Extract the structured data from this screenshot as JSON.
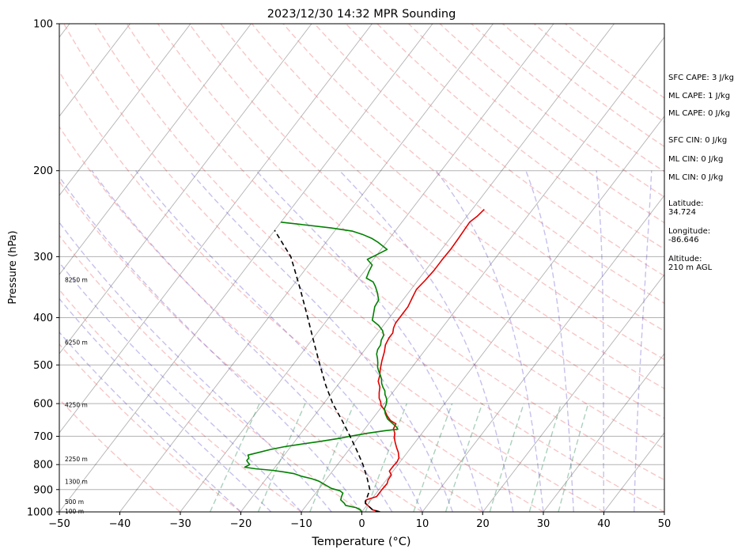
{
  "chart_data": {
    "type": "line",
    "title": "2023/12/30 14:32 MPR Sounding",
    "xlabel": "Temperature (°C)",
    "ylabel": "Pressure (hPa)",
    "xlim": [
      -50,
      50
    ],
    "ylim": [
      1000,
      100
    ],
    "yscale": "log",
    "x_ticks": [
      "−50",
      "−40",
      "−30",
      "−20",
      "−10",
      "0",
      "10",
      "20",
      "30",
      "40",
      "50"
    ],
    "y_ticks": [
      1000,
      900,
      800,
      700,
      600,
      500,
      400,
      300,
      200,
      100
    ],
    "grid": true,
    "series": [
      {
        "role": "temperature",
        "color": "#e00000",
        "points": [
          [
            3.0,
            1000
          ],
          [
            1.5,
            990
          ],
          [
            0.5,
            975
          ],
          [
            -0.5,
            960
          ],
          [
            -0.8,
            945
          ],
          [
            0.5,
            930
          ],
          [
            0.5,
            900
          ],
          [
            0.6,
            875
          ],
          [
            0.3,
            860
          ],
          [
            0.2,
            840
          ],
          [
            -0.6,
            825
          ],
          [
            -0.6,
            805
          ],
          [
            -0.5,
            790
          ],
          [
            -0.7,
            775
          ],
          [
            -1.5,
            755
          ],
          [
            -2.3,
            740
          ],
          [
            -3.3,
            720
          ],
          [
            -4.0,
            705
          ],
          [
            -4.5,
            690
          ],
          [
            -5.3,
            675
          ],
          [
            -5.5,
            660
          ],
          [
            -6.8,
            650
          ],
          [
            -8.0,
            635
          ],
          [
            -9.0,
            620
          ],
          [
            -10.3,
            605
          ],
          [
            -10.8,
            595
          ],
          [
            -11.5,
            585
          ],
          [
            -12.2,
            570
          ],
          [
            -12.8,
            555
          ],
          [
            -13.8,
            540
          ],
          [
            -14.3,
            525
          ],
          [
            -15.0,
            510
          ],
          [
            -15.8,
            490
          ],
          [
            -16.5,
            470
          ],
          [
            -17.2,
            455
          ],
          [
            -17.5,
            440
          ],
          [
            -17.5,
            430
          ],
          [
            -18.0,
            420
          ],
          [
            -18.3,
            410
          ],
          [
            -18.3,
            395
          ],
          [
            -18.3,
            380
          ],
          [
            -18.7,
            365
          ],
          [
            -19.1,
            350
          ],
          [
            -18.8,
            335
          ],
          [
            -18.6,
            320
          ],
          [
            -18.6,
            305
          ],
          [
            -18.5,
            290
          ],
          [
            -18.6,
            275
          ],
          [
            -18.7,
            265
          ],
          [
            -18.8,
            255
          ],
          [
            -18.3,
            248
          ],
          [
            -18.0,
            240
          ]
        ]
      },
      {
        "role": "dewpoint",
        "color": "#008000",
        "points": [
          [
            0.0,
            1000
          ],
          [
            -0.5,
            990
          ],
          [
            -1.5,
            980
          ],
          [
            -3.5,
            970
          ],
          [
            -4.0,
            960
          ],
          [
            -5.0,
            945
          ],
          [
            -5.3,
            930
          ],
          [
            -5.5,
            915
          ],
          [
            -6.3,
            905
          ],
          [
            -8.0,
            895
          ],
          [
            -9.5,
            880
          ],
          [
            -11.0,
            865
          ],
          [
            -12.5,
            855
          ],
          [
            -14.5,
            845
          ],
          [
            -16.0,
            835
          ],
          [
            -18.0,
            828
          ],
          [
            -20.0,
            822
          ],
          [
            -23.0,
            816
          ],
          [
            -25.0,
            810
          ],
          [
            -24.5,
            800
          ],
          [
            -25.0,
            793
          ],
          [
            -25.5,
            785
          ],
          [
            -25.5,
            775
          ],
          [
            -26.0,
            765
          ],
          [
            -24.5,
            755
          ],
          [
            -23.0,
            745
          ],
          [
            -21.0,
            735
          ],
          [
            -19.0,
            728
          ],
          [
            -16.0,
            718
          ],
          [
            -13.0,
            707
          ],
          [
            -11.5,
            700
          ],
          [
            -9.0,
            690
          ],
          [
            -6.5,
            682
          ],
          [
            -4.5,
            677
          ],
          [
            -5.0,
            670
          ],
          [
            -6.0,
            660
          ],
          [
            -7.5,
            645
          ],
          [
            -8.5,
            630
          ],
          [
            -9.3,
            615
          ],
          [
            -9.5,
            605
          ],
          [
            -9.8,
            595
          ],
          [
            -10.3,
            585
          ],
          [
            -11.0,
            575
          ],
          [
            -11.5,
            565
          ],
          [
            -12.3,
            555
          ],
          [
            -13.0,
            545
          ],
          [
            -13.5,
            535
          ],
          [
            -14.2,
            525
          ],
          [
            -15.0,
            515
          ],
          [
            -15.7,
            505
          ],
          [
            -16.2,
            495
          ],
          [
            -16.8,
            485
          ],
          [
            -17.5,
            475
          ],
          [
            -17.9,
            465
          ],
          [
            -18.0,
            455
          ],
          [
            -18.5,
            445
          ],
          [
            -18.7,
            435
          ],
          [
            -19.5,
            425
          ],
          [
            -20.8,
            415
          ],
          [
            -22.5,
            405
          ],
          [
            -23.0,
            395
          ],
          [
            -23.8,
            380
          ],
          [
            -24.0,
            368
          ],
          [
            -25.2,
            355
          ],
          [
            -26.3,
            345
          ],
          [
            -27.2,
            338
          ],
          [
            -28.8,
            332
          ],
          [
            -29.2,
            322
          ],
          [
            -29.5,
            312
          ],
          [
            -31.0,
            304
          ],
          [
            -30.0,
            297
          ],
          [
            -29.0,
            290
          ],
          [
            -31.5,
            280
          ],
          [
            -33.0,
            275
          ],
          [
            -35.0,
            270
          ],
          [
            -37.0,
            266
          ],
          [
            -41.0,
            262
          ],
          [
            -46.0,
            258
          ],
          [
            -50.0,
            255
          ]
        ]
      },
      {
        "role": "parcel",
        "color": "#000000",
        "dashed": true,
        "points": [
          [
            3.0,
            1000
          ],
          [
            1.5,
            990
          ],
          [
            0.5,
            975
          ],
          [
            -0.5,
            960
          ],
          [
            -0.8,
            950
          ],
          [
            -0.8,
            945
          ],
          [
            -1.5,
            900
          ],
          [
            -3.5,
            850
          ],
          [
            -5.8,
            800
          ],
          [
            -8.5,
            750
          ],
          [
            -11.5,
            700
          ],
          [
            -14.8,
            650
          ],
          [
            -18.5,
            600
          ],
          [
            -22.0,
            550
          ],
          [
            -25.5,
            500
          ],
          [
            -29.3,
            450
          ],
          [
            -33.5,
            400
          ],
          [
            -38.3,
            350
          ],
          [
            -44.0,
            300
          ],
          [
            -50.0,
            265
          ]
        ]
      }
    ],
    "height_labels": [
      {
        "text": "100 m",
        "p": 998
      },
      {
        "text": "500 m",
        "p": 955
      },
      {
        "text": "1300 m",
        "p": 868
      },
      {
        "text": "2250 m",
        "p": 780
      },
      {
        "text": "4250 m",
        "p": 604
      },
      {
        "text": "6250 m",
        "p": 450
      },
      {
        "text": "8250 m",
        "p": 335
      }
    ],
    "annotations": [
      "SFC CAPE: 3 J/kg",
      "ML CAPE: 1 J/kg",
      "ML CAPE: 0 J/kg",
      "SFC CIN: 0 J/kg",
      "ML CIN: 0 J/kg",
      "ML CIN: 0 J/kg",
      "Latitude:\n34.724",
      "Longitude:\n-86.646",
      "Altitude:\n210 m AGL"
    ]
  }
}
